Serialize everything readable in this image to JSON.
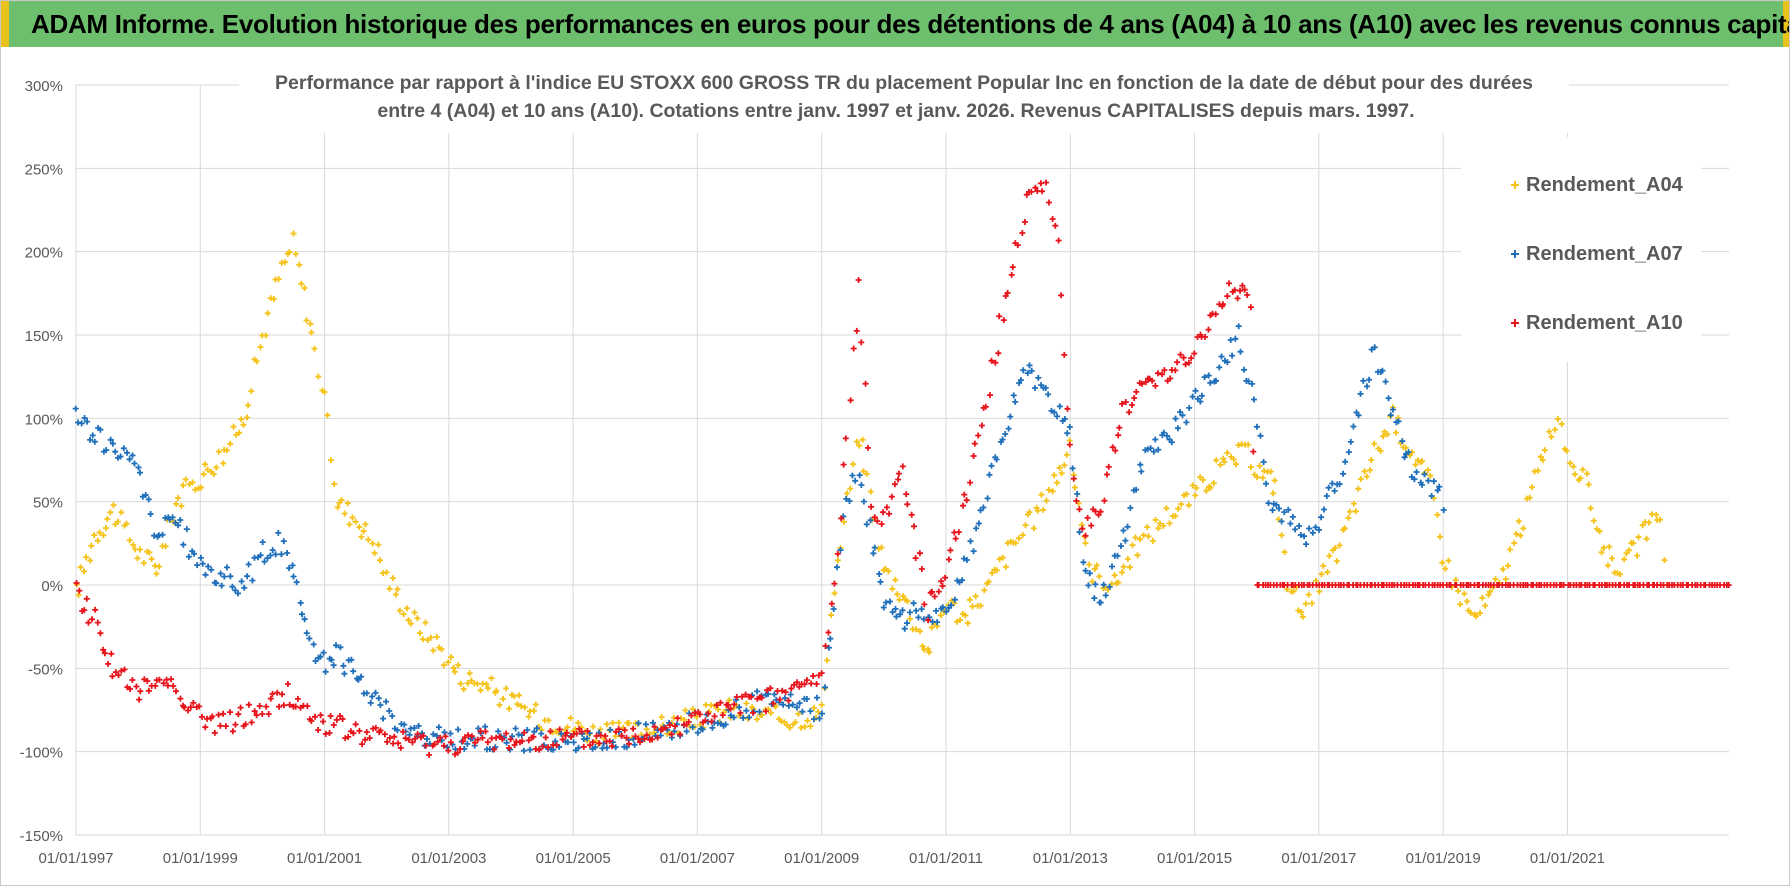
{
  "banner": {
    "text": "ADAM Informe. Evolution historique des performances en euros pour des détentions de 4 ans (A04) à 10 ans (A10) avec les revenus connus capitalisés"
  },
  "chart_data": {
    "type": "scatter",
    "title_line1": "Performance par rapport à l'indice EU STOXX 600 GROSS TR  du placement Popular Inc en fonction de la date de début pour des durées",
    "title_line2": "entre 4 (A04) et 10 ans (A10). Cotations entre janv. 1997 et janv. 2026. Revenus CAPITALISES depuis mars. 1997.",
    "xlabel": "",
    "ylabel": "",
    "xlim": [
      1997.0,
      2023.6
    ],
    "ylim": [
      -150,
      300
    ],
    "yticks": [
      300,
      250,
      200,
      150,
      100,
      50,
      0,
      -50,
      -100,
      -150
    ],
    "ytick_labels": [
      "300%",
      "250%",
      "200%",
      "150%",
      "100%",
      "50%",
      "0%",
      "-50%",
      "-100%",
      "-150%"
    ],
    "xticks": [
      1997,
      1999,
      2001,
      2003,
      2005,
      2007,
      2009,
      2011,
      2013,
      2015,
      2017,
      2019,
      2021
    ],
    "xtick_labels": [
      "01/01/1997",
      "01/01/1999",
      "01/01/2001",
      "01/01/2003",
      "01/01/2005",
      "01/01/2007",
      "01/01/2009",
      "01/01/2011",
      "01/01/2013",
      "01/01/2015",
      "01/01/2017",
      "01/01/2019",
      "01/01/2021"
    ],
    "grid": true,
    "legend_position": "top-right",
    "marker": "+",
    "series": [
      {
        "name": "Rendement_A04",
        "color": "#f5c218",
        "x": [
          1997.0,
          1997.3,
          1997.6,
          1998.0,
          1998.3,
          1998.6,
          1999.0,
          1999.4,
          1999.7,
          2000.0,
          2000.3,
          2000.5,
          2000.8,
          2001.0,
          2001.2,
          2001.5,
          2001.8,
          2002.0,
          2002.4,
          2002.8,
          2003.2,
          2003.6,
          2004.0,
          2004.5,
          2005.0,
          2005.5,
          2006.0,
          2006.5,
          2007.0,
          2007.5,
          2008.0,
          2008.5,
          2009.0,
          2009.2,
          2009.4,
          2009.6,
          2010.0,
          2010.3,
          2010.7,
          2011.0,
          2011.3,
          2011.7,
          2012.0,
          2012.4,
          2012.7,
          2013.0,
          2013.3,
          2013.7,
          2014.0,
          2014.5,
          2015.0,
          2015.4,
          2015.8,
          2016.0,
          2016.3,
          2016.5,
          2016.8,
          2017.0,
          2017.3,
          2017.6,
          2017.9,
          2018.2,
          2018.5,
          2018.8,
          2019.0,
          2019.2,
          2019.5,
          2019.8,
          2020.0,
          2020.3,
          2020.6,
          2020.8,
          2021.0,
          2021.3,
          2021.6,
          2021.9,
          2022.2,
          2022.5,
          2022.6
        ],
        "values": [
          -5,
          30,
          45,
          20,
          10,
          50,
          65,
          80,
          100,
          150,
          190,
          205,
          150,
          110,
          50,
          40,
          25,
          5,
          -20,
          -35,
          -55,
          -60,
          -70,
          -80,
          -85,
          -90,
          -88,
          -85,
          -80,
          -75,
          -78,
          -80,
          -77,
          0,
          50,
          90,
          10,
          -5,
          -40,
          -10,
          -20,
          0,
          20,
          40,
          60,
          80,
          10,
          0,
          20,
          40,
          55,
          70,
          80,
          70,
          60,
          0,
          -15,
          0,
          20,
          50,
          80,
          100,
          80,
          60,
          20,
          0,
          -20,
          -5,
          10,
          40,
          80,
          100,
          80,
          60,
          20,
          10,
          30,
          40,
          0
        ]
      },
      {
        "name": "Rendement_A07",
        "color": "#1f6fba",
        "x": [
          1997.0,
          1997.5,
          1998.0,
          1998.3,
          1998.6,
          1999.0,
          1999.4,
          1999.7,
          2000.0,
          2000.3,
          2000.6,
          2000.9,
          2001.2,
          2001.6,
          2002.0,
          2002.4,
          2002.7,
          2003.2,
          2003.8,
          2004.5,
          2005.0,
          2005.5,
          2006.0,
          2006.5,
          2007.0,
          2007.5,
          2008.0,
          2008.5,
          2009.0,
          2009.2,
          2009.4,
          2009.6,
          2010.0,
          2010.3,
          2010.7,
          2011.0,
          2011.3,
          2011.7,
          2012.0,
          2012.3,
          2012.7,
          2013.0,
          2013.2,
          2013.5,
          2013.8,
          2014.2,
          2014.6,
          2015.0,
          2015.4,
          2015.7,
          2016.0,
          2016.2,
          2016.5,
          2016.8,
          2017.0,
          2017.3,
          2017.6,
          2017.9,
          2018.2,
          2018.5,
          2018.8,
          2019.0
        ],
        "values": [
          100,
          85,
          70,
          30,
          40,
          10,
          5,
          0,
          20,
          25,
          -5,
          -50,
          -40,
          -60,
          -75,
          -90,
          -92,
          -92,
          -92,
          -93,
          -95,
          -93,
          -90,
          -85,
          -83,
          -78,
          -70,
          -72,
          -75,
          -10,
          50,
          70,
          -10,
          -20,
          -15,
          -20,
          10,
          60,
          100,
          130,
          110,
          90,
          10,
          -10,
          20,
          80,
          90,
          110,
          130,
          150,
          100,
          50,
          40,
          30,
          40,
          60,
          100,
          140,
          100,
          70,
          60,
          50
        ]
      },
      {
        "name": "Rendement_A10",
        "color": "#e8141b",
        "x": [
          1997.0,
          1997.3,
          1997.6,
          1998.0,
          1998.4,
          1998.8,
          1999.2,
          1999.6,
          2000.0,
          2000.4,
          2000.8,
          2001.2,
          2001.6,
          2002.0,
          2002.5,
          2003.0,
          2003.5,
          2004.0,
          2004.5,
          2005.0,
          2005.5,
          2006.0,
          2006.5,
          2007.0,
          2007.5,
          2008.0,
          2008.5,
          2009.0,
          2009.2,
          2009.4,
          2009.6,
          2009.8,
          2010.0,
          2010.3,
          2010.7,
          2011.0,
          2011.3,
          2011.7,
          2012.0,
          2012.3,
          2012.6,
          2012.8,
          2013.0,
          2013.2,
          2013.5,
          2013.8,
          2014.2,
          2014.6,
          2015.0,
          2015.3,
          2015.6,
          2015.9,
          2016.0,
          2016.5,
          2017.0,
          2017.5,
          2018.0,
          2018.5,
          2019.0,
          2019.5,
          2020.0,
          2020.5,
          2021.0,
          2021.5,
          2022.0,
          2022.5,
          2023.0,
          2023.6
        ],
        "values": [
          -5,
          -20,
          -50,
          -65,
          -55,
          -70,
          -85,
          -80,
          -75,
          -65,
          -80,
          -85,
          -90,
          -92,
          -95,
          -95,
          -94,
          -93,
          -92,
          -93,
          -92,
          -90,
          -85,
          -80,
          -75,
          -70,
          -65,
          -55,
          0,
          90,
          180,
          50,
          40,
          70,
          -15,
          10,
          50,
          120,
          180,
          230,
          245,
          200,
          80,
          30,
          50,
          100,
          120,
          130,
          140,
          160,
          180,
          170,
          0,
          0,
          0,
          0,
          0,
          0,
          0,
          0,
          0,
          0,
          0,
          0,
          0,
          0,
          0,
          0
        ]
      }
    ]
  }
}
